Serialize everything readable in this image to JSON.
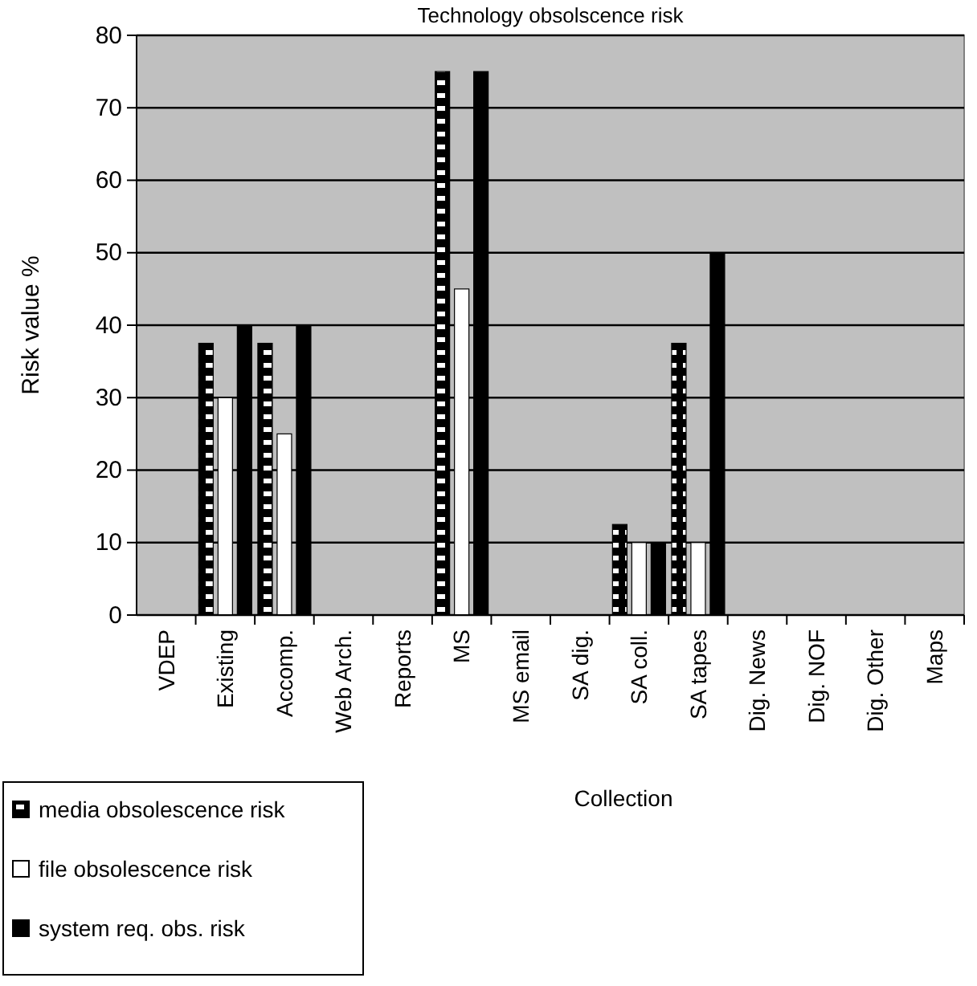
{
  "chart_data": {
    "type": "bar",
    "title": "Technology obsolscence risk",
    "xlabel": "Collection",
    "ylabel": "Risk value %",
    "categories": [
      "VDEP",
      "Existing",
      "Accomp.",
      "Web Arch.",
      "Reports",
      "MS",
      "MS email",
      "SA dig.",
      "SA coll.",
      "SA tapes",
      "Dig. News",
      "Dig. NOF",
      "Dig. Other",
      "Maps"
    ],
    "series": [
      {
        "name": "media obsolescence risk",
        "color": "#000000",
        "values": [
          0,
          37.5,
          37.5,
          0,
          0,
          75,
          0,
          0,
          12.5,
          37.5,
          0,
          0,
          0,
          0
        ]
      },
      {
        "name": "file obsolescence risk",
        "color": "#ffffff",
        "values": [
          0,
          30,
          25,
          0,
          0,
          45,
          0,
          0,
          10,
          10,
          0,
          0,
          0,
          0
        ]
      },
      {
        "name": "system req. obs. risk",
        "color": "#000000",
        "values": [
          0,
          40,
          40,
          0,
          0,
          75,
          0,
          0,
          10,
          50,
          0,
          0,
          0,
          0
        ]
      }
    ],
    "ylim": [
      0,
      80
    ],
    "yticks": [
      0,
      10,
      20,
      30,
      40,
      50,
      60,
      70,
      80
    ],
    "grid": "y",
    "legend": "bottom left"
  }
}
